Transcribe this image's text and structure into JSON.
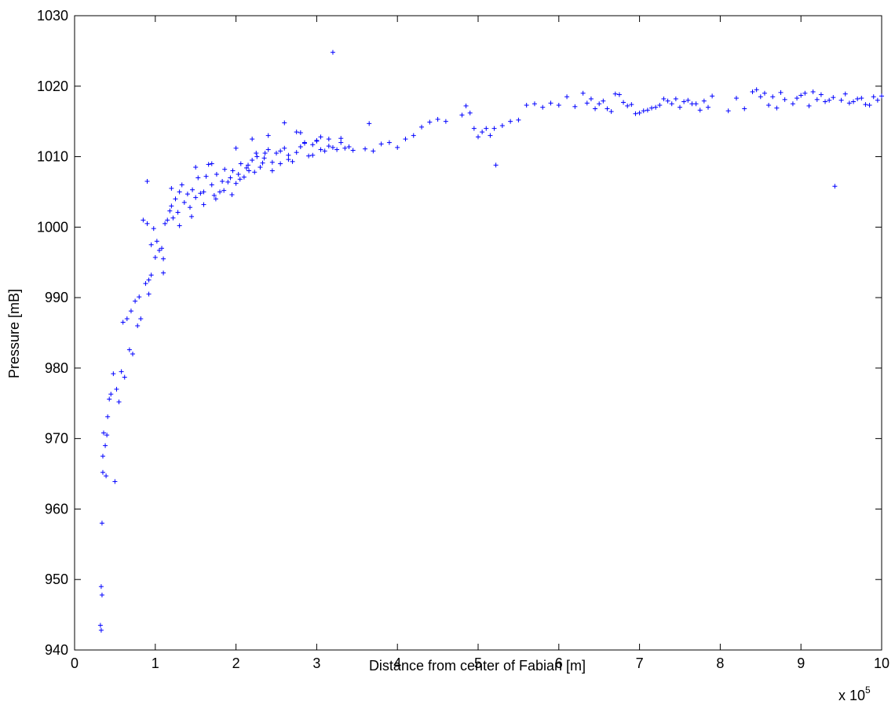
{
  "chart_data": {
    "type": "scatter",
    "title": "",
    "xlabel": "Distance from center of Fabian [m]",
    "ylabel": "Pressure [mB]",
    "x_multiplier_label": "x 10",
    "x_multiplier_exponent": "5",
    "xlim": [
      0,
      10
    ],
    "ylim": [
      940,
      1030
    ],
    "x_ticks": [
      0,
      1,
      2,
      3,
      4,
      5,
      6,
      7,
      8,
      9,
      10
    ],
    "y_ticks": [
      940,
      950,
      960,
      970,
      980,
      990,
      1000,
      1010,
      1020,
      1030
    ],
    "grid": false,
    "legend": "none",
    "marker": "+",
    "color": "#0000ff",
    "series": [
      {
        "x": [
          0.32,
          0.33,
          0.33,
          0.34,
          0.34,
          0.35,
          0.35,
          0.36,
          0.38,
          0.39,
          0.4,
          0.41,
          0.43,
          0.45,
          0.48,
          0.5,
          0.52,
          0.55,
          0.58,
          0.6,
          0.62,
          0.65,
          0.68,
          0.7,
          0.72,
          0.75,
          0.78,
          0.8,
          0.82,
          0.85,
          0.88,
          0.9,
          0.92,
          0.95,
          0.98,
          1.0,
          1.02,
          1.05,
          1.08,
          1.1,
          1.12,
          1.15,
          1.18,
          1.2,
          1.22,
          1.25,
          1.28,
          1.3,
          1.33,
          1.36,
          1.4,
          1.43,
          1.46,
          1.5,
          1.53,
          1.56,
          1.6,
          1.63,
          1.66,
          1.7,
          1.73,
          1.76,
          1.8,
          1.83,
          1.86,
          1.9,
          1.93,
          1.96,
          2.0,
          2.03,
          2.06,
          2.1,
          2.13,
          2.16,
          2.2,
          2.23,
          2.26,
          2.3,
          2.33,
          2.36,
          2.4,
          2.45,
          2.5,
          2.55,
          2.6,
          2.65,
          2.7,
          2.75,
          2.8,
          2.85,
          2.9,
          2.95,
          3.0,
          3.05,
          3.1,
          3.15,
          3.2,
          3.25,
          3.3,
          3.35,
          3.4,
          3.45,
          3.6,
          3.65,
          3.7,
          3.8,
          3.9,
          4.0,
          4.1,
          4.2,
          4.3,
          4.4,
          4.5,
          4.6,
          4.8,
          4.85,
          4.9,
          4.95,
          5.0,
          5.05,
          5.1,
          5.15,
          5.2,
          5.22,
          5.3,
          5.4,
          5.5,
          5.6,
          5.7,
          5.8,
          5.9,
          6.0,
          6.1,
          6.2,
          6.3,
          6.4,
          6.5,
          6.6,
          6.7,
          6.8,
          6.9,
          7.0,
          7.1,
          7.2,
          7.3,
          7.4,
          7.5,
          7.6,
          7.7,
          7.8,
          7.9,
          8.1,
          8.2,
          8.3,
          8.4,
          8.5,
          8.6,
          8.7,
          8.8,
          8.9,
          9.0,
          9.1,
          9.2,
          9.3,
          9.4,
          9.42,
          9.5,
          9.6,
          9.7,
          9.8,
          9.9,
          10.0,
          3.2,
          0.9,
          1.5,
          1.7,
          2.0,
          2.2,
          2.4,
          2.6,
          2.8,
          3.0,
          0.92,
          0.95,
          1.1,
          1.2,
          1.3,
          1.45,
          1.6,
          1.75,
          1.85,
          1.95,
          2.05,
          2.15,
          2.25,
          2.35,
          2.45,
          2.55,
          2.65,
          2.75,
          2.85,
          2.95,
          3.05,
          3.15,
          3.3,
          8.45,
          8.55,
          8.65,
          8.75,
          8.95,
          9.05,
          9.15,
          9.25,
          9.35,
          9.55,
          9.65,
          9.75,
          9.85,
          9.95,
          7.05,
          7.15,
          7.25,
          7.35,
          7.45,
          7.55,
          7.65,
          7.75,
          7.85,
          6.35,
          6.45,
          6.55,
          6.65,
          6.75,
          6.85,
          6.95
        ],
        "y": [
          943.5,
          942.8,
          949.0,
          947.8,
          958.0,
          965.2,
          967.5,
          970.8,
          969.0,
          964.7,
          970.5,
          973.1,
          975.6,
          976.3,
          979.2,
          963.9,
          977.0,
          975.2,
          979.5,
          986.5,
          978.7,
          987.0,
          982.6,
          988.1,
          982.0,
          989.5,
          986.0,
          990.1,
          987.0,
          1001.0,
          992.0,
          1000.5,
          992.5,
          993.2,
          999.8,
          995.7,
          998.0,
          996.7,
          997.0,
          995.5,
          1000.5,
          1001.0,
          1002.3,
          1003.0,
          1001.3,
          1004.0,
          1002.1,
          1005.0,
          1006.0,
          1003.5,
          1004.7,
          1002.8,
          1005.3,
          1004.2,
          1007.0,
          1004.8,
          1005.0,
          1007.2,
          1008.9,
          1006.0,
          1004.5,
          1007.5,
          1005.0,
          1006.5,
          1008.2,
          1006.4,
          1007.0,
          1008.0,
          1006.2,
          1007.5,
          1009.0,
          1007.1,
          1008.4,
          1008.0,
          1009.5,
          1007.8,
          1010.0,
          1008.5,
          1009.1,
          1010.5,
          1011.0,
          1009.2,
          1010.5,
          1009.0,
          1011.2,
          1010.2,
          1009.3,
          1010.6,
          1011.4,
          1012.0,
          1010.1,
          1011.7,
          1012.3,
          1011.0,
          1010.8,
          1012.5,
          1011.3,
          1011.0,
          1012.6,
          1011.2,
          1011.4,
          1010.9,
          1011.1,
          1014.7,
          1010.8,
          1011.8,
          1012.0,
          1011.3,
          1012.5,
          1013.0,
          1014.2,
          1014.9,
          1015.3,
          1015.0,
          1015.9,
          1017.2,
          1016.2,
          1014.0,
          1012.8,
          1013.5,
          1014.0,
          1013.0,
          1014.0,
          1008.8,
          1014.4,
          1015.0,
          1015.2,
          1017.3,
          1017.5,
          1017.0,
          1017.6,
          1017.3,
          1018.5,
          1017.1,
          1019.0,
          1018.2,
          1017.5,
          1016.8,
          1018.9,
          1017.7,
          1017.4,
          1016.2,
          1016.6,
          1017.0,
          1018.2,
          1017.5,
          1017.0,
          1018.0,
          1017.5,
          1017.9,
          1018.6,
          1016.5,
          1018.3,
          1016.8,
          1019.2,
          1018.5,
          1017.3,
          1016.9,
          1018.1,
          1017.5,
          1018.7,
          1017.2,
          1018.1,
          1017.8,
          1018.4,
          1005.8,
          1018.0,
          1017.6,
          1018.2,
          1017.4,
          1018.5,
          1018.6,
          1024.8,
          1006.5,
          1008.5,
          1009.0,
          1011.2,
          1012.5,
          1013.0,
          1014.8,
          1013.4,
          1012.2,
          990.5,
          997.5,
          993.5,
          1005.5,
          1000.2,
          1001.5,
          1003.2,
          1004.0,
          1005.2,
          1004.6,
          1006.8,
          1008.8,
          1010.5,
          1009.8,
          1008.0,
          1010.8,
          1009.6,
          1013.5,
          1011.9,
          1010.2,
          1012.8,
          1011.5,
          1012.0,
          1019.5,
          1019.0,
          1018.5,
          1019.1,
          1018.3,
          1019.0,
          1019.2,
          1018.8,
          1018.0,
          1018.9,
          1017.8,
          1018.3,
          1017.3,
          1018.0,
          1016.5,
          1016.9,
          1017.3,
          1017.9,
          1018.2,
          1017.8,
          1017.5,
          1016.6,
          1017.0,
          1017.6,
          1016.8,
          1017.9,
          1016.4,
          1018.8,
          1017.2,
          1016.1
        ]
      }
    ]
  }
}
